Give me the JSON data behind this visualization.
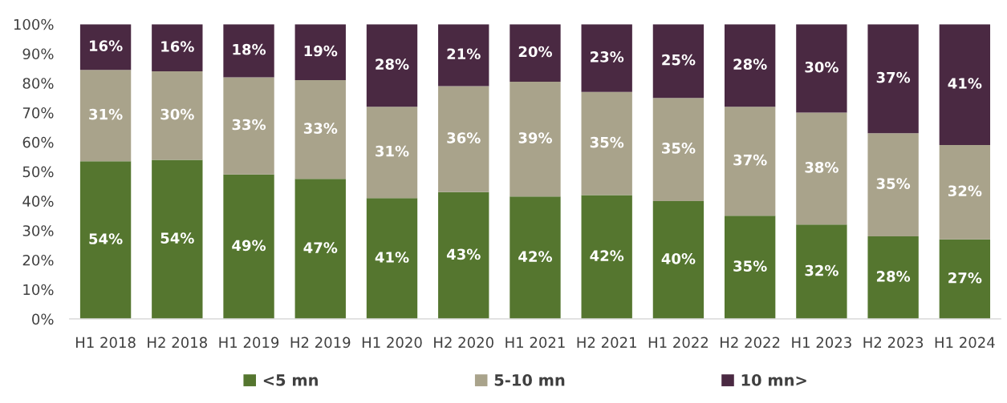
{
  "chart_data": {
    "type": "bar",
    "stacked": true,
    "categories": [
      "H1 2018",
      "H2 2018",
      "H1 2019",
      "H2 2019",
      "H1 2020",
      "H2 2020",
      "H1 2021",
      "H2 2021",
      "H1 2022",
      "H2 2022",
      "H1 2023",
      "H2 2023",
      "H1 2024"
    ],
    "series": [
      {
        "name": "<5 mn",
        "color": "#55762f",
        "values": [
          53.5,
          54,
          49,
          47.5,
          41,
          43,
          41.5,
          42,
          40,
          35,
          32,
          28,
          27
        ],
        "value_labels": [
          "54%",
          "54%",
          "49%",
          "47%",
          "41%",
          "43%",
          "42%",
          "42%",
          "40%",
          "35%",
          "32%",
          "28%",
          "27%"
        ]
      },
      {
        "name": "5-10 mn",
        "color": "#a9a38b",
        "values": [
          31,
          30,
          33,
          33.5,
          31,
          36,
          39,
          35,
          35,
          37,
          38,
          35,
          32
        ],
        "value_labels": [
          "31%",
          "30%",
          "33%",
          "33%",
          "31%",
          "36%",
          "39%",
          "35%",
          "35%",
          "37%",
          "38%",
          "35%",
          "32%"
        ]
      },
      {
        "name": "10 mn>",
        "color": "#4a2942",
        "values": [
          15.5,
          16,
          18,
          19,
          28,
          21,
          19.5,
          23,
          25,
          28,
          30,
          37,
          41
        ],
        "value_labels": [
          "16%",
          "16%",
          "18%",
          "19%",
          "28%",
          "21%",
          "20%",
          "23%",
          "25%",
          "28%",
          "30%",
          "37%",
          "41%"
        ]
      }
    ],
    "ylim": [
      0,
      100
    ],
    "yticks": [
      {
        "value": 0,
        "label": "0%"
      },
      {
        "value": 10,
        "label": "10%"
      },
      {
        "value": 20,
        "label": "20%"
      },
      {
        "value": 30,
        "label": "30%"
      },
      {
        "value": 40,
        "label": "40%"
      },
      {
        "value": 50,
        "label": "50%"
      },
      {
        "value": 60,
        "label": "60%"
      },
      {
        "value": 70,
        "label": "70%"
      },
      {
        "value": 80,
        "label": "80%"
      },
      {
        "value": 90,
        "label": "90%"
      },
      {
        "value": 100,
        "label": "100%"
      }
    ],
    "grid": false,
    "legend": "bottom"
  }
}
